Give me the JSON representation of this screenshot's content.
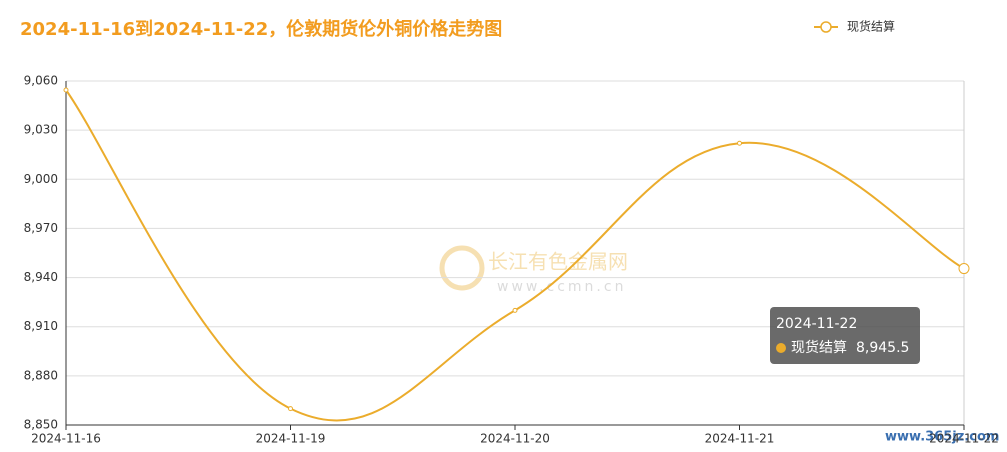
{
  "chart_data": {
    "type": "line",
    "title": "2024-11-16到2024-11-22，伦敦期货伦外铜价格走势图",
    "categories": [
      "2024-11-16",
      "2024-11-19",
      "2024-11-20",
      "2024-11-21",
      "2024-11-22"
    ],
    "series": [
      {
        "name": "现货结算",
        "color": "#ebac2c",
        "values": [
          9054.5,
          8860,
          8920,
          9022,
          8945.5
        ],
        "value_labels": [
          null,
          null,
          null,
          null,
          "8,945.5"
        ]
      }
    ],
    "ylim": [
      8850,
      9060
    ],
    "yticks": [
      {
        "value": 8850,
        "label": "8,850"
      },
      {
        "value": 8880,
        "label": "8,880"
      },
      {
        "value": 8910,
        "label": "8,910"
      },
      {
        "value": 8940,
        "label": "8,940"
      },
      {
        "value": 8970,
        "label": "8,970"
      },
      {
        "value": 9000,
        "label": "9,000"
      },
      {
        "value": 9030,
        "label": "9,030"
      },
      {
        "value": 9060,
        "label": "9,060"
      }
    ],
    "grid": true,
    "legend": "top-right",
    "annotations": [
      "长江有色金属网",
      "www.ccmn.cn",
      "www.365jz.com"
    ]
  }
}
